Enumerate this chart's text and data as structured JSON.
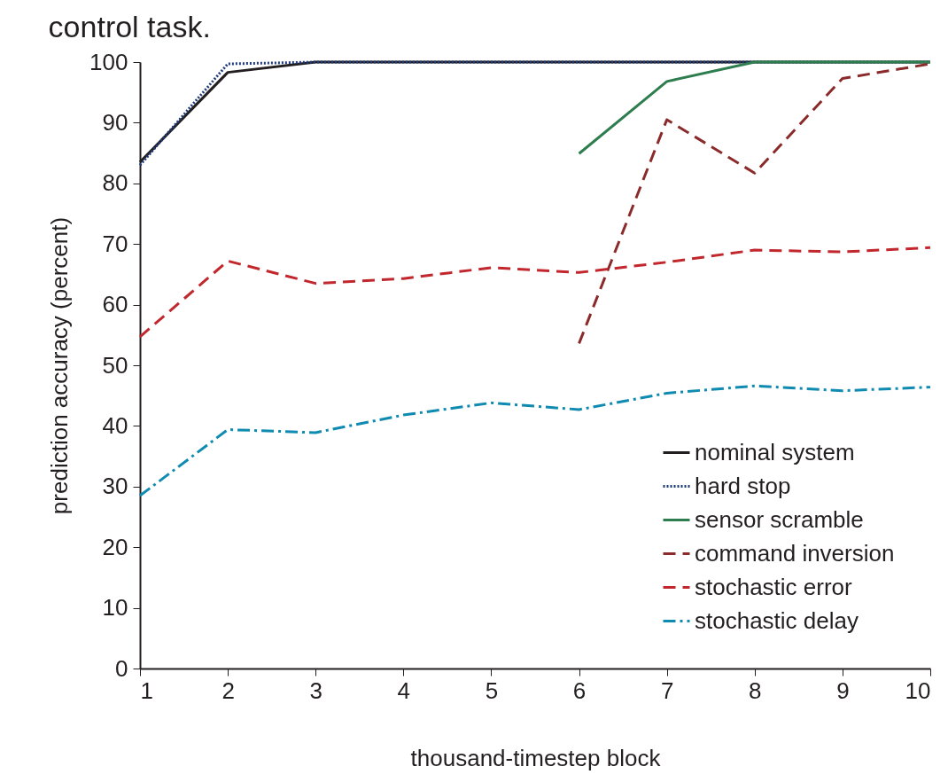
{
  "chart_data": {
    "type": "line",
    "title": "control task.",
    "xlabel": "thousand-timestep block",
    "ylabel": "prediction accuracy (percent)",
    "x": [
      1,
      2,
      3,
      4,
      5,
      6,
      7,
      8,
      9,
      10
    ],
    "series": [
      {
        "name": "nominal system",
        "color": "#231f20",
        "line_style": "solid",
        "values": [
          83.5,
          98.3,
          100,
          100,
          100,
          100,
          100,
          100,
          100,
          100
        ]
      },
      {
        "name": "hard stop",
        "color": "#1f3a7a",
        "line_style": "dotted",
        "values": [
          83,
          99.7,
          100,
          100,
          100,
          100,
          100,
          100,
          100,
          100
        ]
      },
      {
        "name": "sensor scramble",
        "color": "#2e7d4f",
        "line_style": "solid",
        "values": [
          null,
          null,
          null,
          null,
          null,
          84.9,
          96.8,
          100,
          100,
          100
        ]
      },
      {
        "name": "command inversion",
        "color": "#8b2a2a",
        "line_style": "dashed",
        "values": [
          null,
          null,
          null,
          null,
          null,
          53.6,
          90.5,
          81.7,
          97.3,
          99.7
        ]
      },
      {
        "name": "stochastic error",
        "color": "#c1272d",
        "line_style": "dashed",
        "values": [
          54.7,
          67.2,
          63.5,
          64.3,
          66.1,
          65.3,
          67,
          69,
          68.7,
          69.4
        ]
      },
      {
        "name": "stochastic delay",
        "color": "#0f8ab0",
        "line_style": "dashdot",
        "values": [
          28.5,
          39.4,
          38.9,
          41.8,
          43.8,
          42.7,
          45.4,
          46.6,
          45.8,
          46.4
        ]
      }
    ],
    "xlim": [
      1,
      10
    ],
    "xticks": [
      1,
      2,
      3,
      4,
      5,
      6,
      7,
      8,
      9,
      10
    ],
    "ylim": [
      0,
      100
    ],
    "yticks": [
      0,
      10,
      20,
      30,
      40,
      50,
      60,
      70,
      80,
      90,
      100
    ],
    "grid": false,
    "legend": "bottom right",
    "marker": "none"
  }
}
